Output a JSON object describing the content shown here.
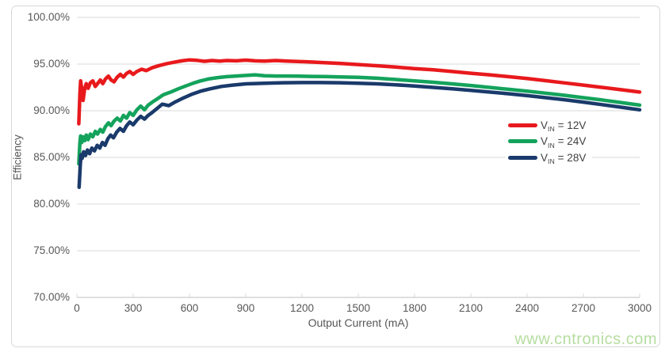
{
  "watermark": {
    "text": "www.cntronics.com",
    "color": "#b6dda0"
  },
  "axes": {
    "x_title": "Output Current (mA)",
    "y_title": "Efficiency"
  },
  "colors": {
    "grid": "#d9d9d9",
    "axis_line": "#bfbfbf",
    "tick_text": "#575757",
    "border": "#d8d8d8"
  },
  "chart_data": {
    "type": "line",
    "xlabel": "Output Current (mA)",
    "ylabel": "Efficiency",
    "xlim": [
      0,
      3000
    ],
    "ylim": [
      70,
      100
    ],
    "grid": "horizontal",
    "legend_position": "middle-right",
    "x_ticks": [
      0,
      300,
      600,
      900,
      1200,
      1500,
      1800,
      2100,
      2400,
      2700,
      3000
    ],
    "x_tick_labels": [
      "0",
      "300",
      "600",
      "900",
      "1200",
      "1500",
      "1800",
      "2100",
      "2400",
      "2700",
      "3000"
    ],
    "y_ticks": [
      100,
      95,
      90,
      85,
      80,
      75,
      70
    ],
    "y_tick_labels": [
      "100.00%",
      "95.00%",
      "90.00%",
      "85.00%",
      "80.00%",
      "75.00%",
      "70.00%"
    ],
    "series": [
      {
        "id": "vin-12v",
        "name": "VIN = 12V",
        "legend": {
          "prefix": "V",
          "sub": "IN",
          "suffix": " = 12V"
        },
        "color": "#e8191c",
        "stroke_width": 4.5,
        "points": [
          [
            10,
            88.6
          ],
          [
            16,
            91.8
          ],
          [
            20,
            93.2
          ],
          [
            26,
            92.3
          ],
          [
            33,
            91.1
          ],
          [
            42,
            92.4
          ],
          [
            50,
            92.9
          ],
          [
            60,
            92.4
          ],
          [
            72,
            93.0
          ],
          [
            85,
            93.2
          ],
          [
            98,
            92.6
          ],
          [
            110,
            92.9
          ],
          [
            125,
            93.3
          ],
          [
            138,
            92.9
          ],
          [
            152,
            93.4
          ],
          [
            168,
            93.7
          ],
          [
            182,
            93.3
          ],
          [
            198,
            93.1
          ],
          [
            215,
            93.6
          ],
          [
            232,
            93.9
          ],
          [
            248,
            93.6
          ],
          [
            265,
            94.0
          ],
          [
            282,
            94.2
          ],
          [
            300,
            93.9
          ],
          [
            320,
            94.2
          ],
          [
            345,
            94.45
          ],
          [
            370,
            94.3
          ],
          [
            400,
            94.6
          ],
          [
            440,
            94.85
          ],
          [
            480,
            95.05
          ],
          [
            520,
            95.2
          ],
          [
            560,
            95.35
          ],
          [
            600,
            95.45
          ],
          [
            640,
            95.4
          ],
          [
            680,
            95.3
          ],
          [
            720,
            95.38
          ],
          [
            760,
            95.32
          ],
          [
            800,
            95.38
          ],
          [
            850,
            95.35
          ],
          [
            900,
            95.42
          ],
          [
            950,
            95.35
          ],
          [
            1000,
            95.32
          ],
          [
            1060,
            95.38
          ],
          [
            1120,
            95.32
          ],
          [
            1180,
            95.28
          ],
          [
            1250,
            95.22
          ],
          [
            1320,
            95.15
          ],
          [
            1400,
            95.08
          ],
          [
            1500,
            94.95
          ],
          [
            1600,
            94.82
          ],
          [
            1700,
            94.68
          ],
          [
            1800,
            94.52
          ],
          [
            1900,
            94.38
          ],
          [
            2000,
            94.2
          ],
          [
            2100,
            94.02
          ],
          [
            2200,
            93.85
          ],
          [
            2300,
            93.65
          ],
          [
            2400,
            93.45
          ],
          [
            2500,
            93.22
          ],
          [
            2600,
            92.98
          ],
          [
            2700,
            92.75
          ],
          [
            2800,
            92.5
          ],
          [
            2900,
            92.25
          ],
          [
            3000,
            92.0
          ]
        ]
      },
      {
        "id": "vin-24v",
        "name": "VIN = 24V",
        "legend": {
          "prefix": "V",
          "sub": "IN",
          "suffix": " = 24V"
        },
        "color": "#14a35c",
        "stroke_width": 4.5,
        "points": [
          [
            10,
            84.3
          ],
          [
            16,
            86.6
          ],
          [
            20,
            87.3
          ],
          [
            26,
            86.6
          ],
          [
            33,
            87.2
          ],
          [
            42,
            86.8
          ],
          [
            50,
            87.4
          ],
          [
            60,
            86.9
          ],
          [
            72,
            87.5
          ],
          [
            85,
            87.2
          ],
          [
            98,
            87.8
          ],
          [
            110,
            87.5
          ],
          [
            125,
            88.0
          ],
          [
            138,
            87.7
          ],
          [
            152,
            88.3
          ],
          [
            168,
            88.7
          ],
          [
            182,
            88.4
          ],
          [
            198,
            88.9
          ],
          [
            215,
            89.2
          ],
          [
            232,
            88.9
          ],
          [
            248,
            89.5
          ],
          [
            265,
            89.2
          ],
          [
            282,
            89.8
          ],
          [
            300,
            89.5
          ],
          [
            320,
            90.1
          ],
          [
            340,
            90.5
          ],
          [
            360,
            90.1
          ],
          [
            380,
            90.6
          ],
          [
            400,
            90.9
          ],
          [
            430,
            91.3
          ],
          [
            460,
            91.7
          ],
          [
            500,
            92.0
          ],
          [
            540,
            92.35
          ],
          [
            580,
            92.65
          ],
          [
            620,
            92.95
          ],
          [
            660,
            93.2
          ],
          [
            700,
            93.4
          ],
          [
            750,
            93.55
          ],
          [
            800,
            93.65
          ],
          [
            850,
            93.72
          ],
          [
            900,
            93.78
          ],
          [
            950,
            93.85
          ],
          [
            1000,
            93.75
          ],
          [
            1060,
            93.72
          ],
          [
            1120,
            93.72
          ],
          [
            1180,
            93.7
          ],
          [
            1250,
            93.68
          ],
          [
            1320,
            93.66
          ],
          [
            1400,
            93.63
          ],
          [
            1500,
            93.58
          ],
          [
            1600,
            93.48
          ],
          [
            1700,
            93.35
          ],
          [
            1800,
            93.2
          ],
          [
            1900,
            93.05
          ],
          [
            2000,
            92.88
          ],
          [
            2100,
            92.7
          ],
          [
            2200,
            92.5
          ],
          [
            2300,
            92.3
          ],
          [
            2400,
            92.1
          ],
          [
            2500,
            91.88
          ],
          [
            2600,
            91.65
          ],
          [
            2700,
            91.4
          ],
          [
            2800,
            91.15
          ],
          [
            2900,
            90.88
          ],
          [
            3000,
            90.6
          ]
        ]
      },
      {
        "id": "vin-28v",
        "name": "VIN = 28V",
        "legend": {
          "prefix": "V",
          "sub": "IN",
          "suffix": " = 28V"
        },
        "color": "#1a3a6b",
        "stroke_width": 4.5,
        "points": [
          [
            12,
            81.8
          ],
          [
            18,
            84.2
          ],
          [
            22,
            85.3
          ],
          [
            28,
            84.9
          ],
          [
            36,
            85.6
          ],
          [
            46,
            85.2
          ],
          [
            56,
            85.8
          ],
          [
            68,
            85.4
          ],
          [
            80,
            86.0
          ],
          [
            94,
            85.7
          ],
          [
            108,
            86.3
          ],
          [
            122,
            86.0
          ],
          [
            136,
            86.6
          ],
          [
            150,
            86.3
          ],
          [
            165,
            87.0
          ],
          [
            180,
            87.4
          ],
          [
            195,
            87.1
          ],
          [
            212,
            87.7
          ],
          [
            230,
            88.1
          ],
          [
            248,
            87.8
          ],
          [
            265,
            88.4
          ],
          [
            282,
            88.8
          ],
          [
            300,
            88.5
          ],
          [
            320,
            89.0
          ],
          [
            340,
            89.4
          ],
          [
            360,
            89.1
          ],
          [
            380,
            89.5
          ],
          [
            400,
            89.8
          ],
          [
            425,
            90.2
          ],
          [
            455,
            90.7
          ],
          [
            490,
            90.55
          ],
          [
            520,
            90.9
          ],
          [
            560,
            91.3
          ],
          [
            610,
            91.75
          ],
          [
            660,
            92.1
          ],
          [
            710,
            92.35
          ],
          [
            770,
            92.6
          ],
          [
            830,
            92.75
          ],
          [
            900,
            92.88
          ],
          [
            1000,
            92.95
          ],
          [
            1100,
            93.0
          ],
          [
            1200,
            93.02
          ],
          [
            1300,
            93.02
          ],
          [
            1400,
            93.0
          ],
          [
            1500,
            92.95
          ],
          [
            1600,
            92.88
          ],
          [
            1700,
            92.78
          ],
          [
            1800,
            92.65
          ],
          [
            1900,
            92.5
          ],
          [
            2000,
            92.35
          ],
          [
            2100,
            92.18
          ],
          [
            2200,
            92.0
          ],
          [
            2300,
            91.82
          ],
          [
            2400,
            91.62
          ],
          [
            2500,
            91.4
          ],
          [
            2600,
            91.18
          ],
          [
            2700,
            90.92
          ],
          [
            2800,
            90.65
          ],
          [
            2900,
            90.38
          ],
          [
            3000,
            90.1
          ]
        ]
      }
    ]
  }
}
